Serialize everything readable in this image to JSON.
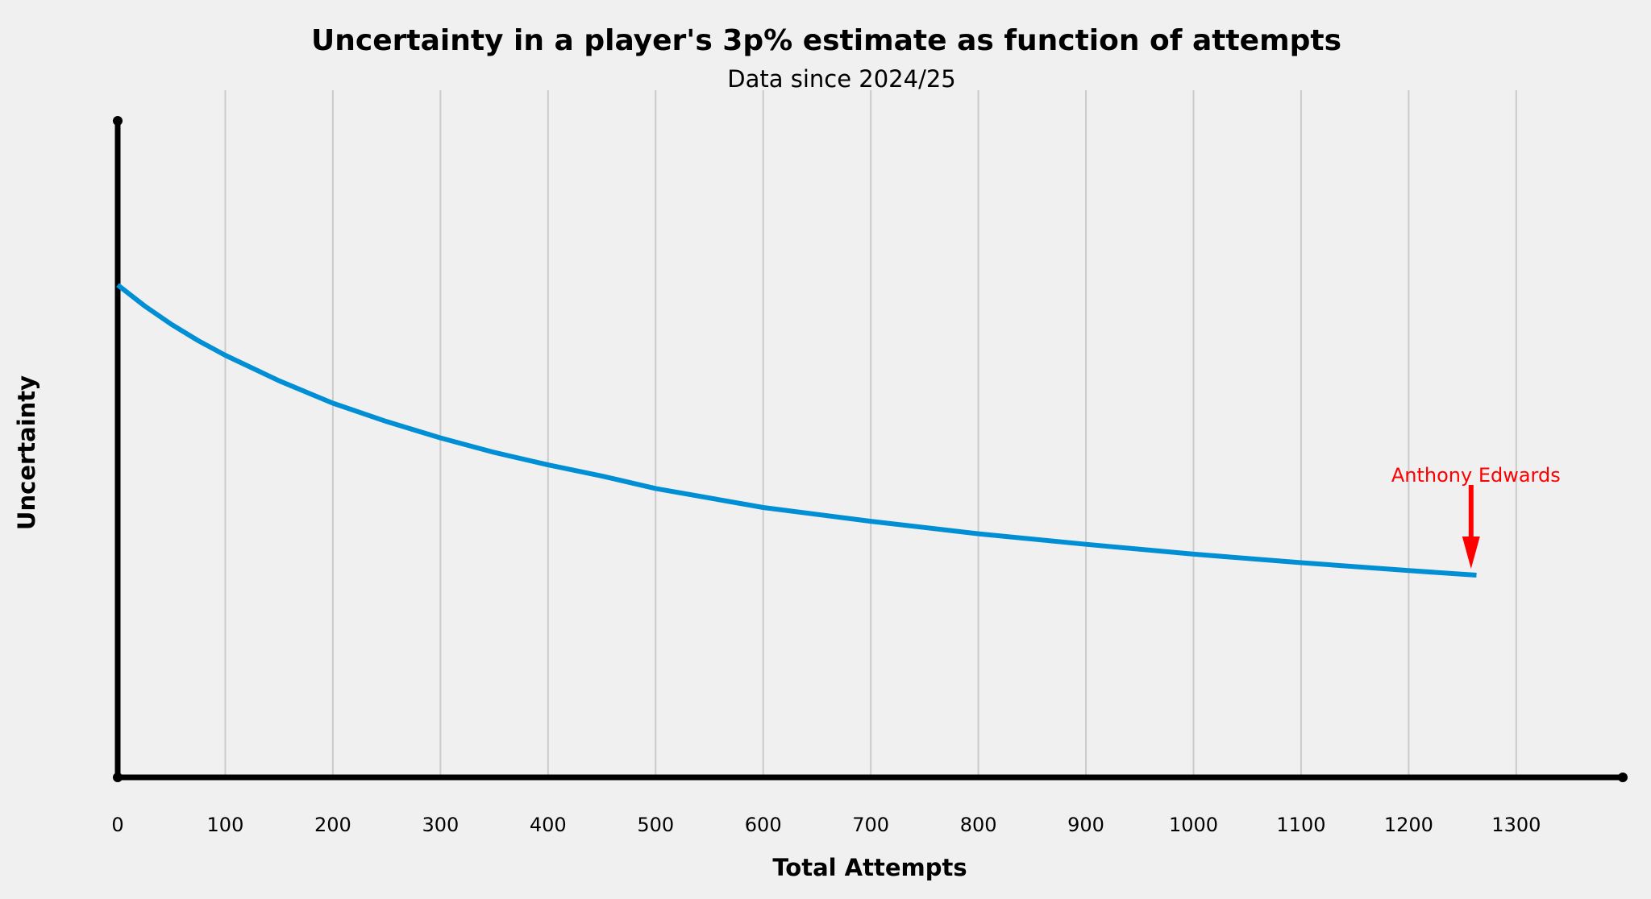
{
  "chart_data": {
    "type": "line",
    "title": "Uncertainty in a player's 3p% estimate as function of attempts",
    "subtitle": "Data since 2024/25",
    "xlabel": "Total Attempts",
    "ylabel": "Uncertainty",
    "xlim": [
      0,
      1400
    ],
    "ylim": [
      0,
      1
    ],
    "xticks": [
      "0",
      "100",
      "200",
      "300",
      "400",
      "500",
      "600",
      "700",
      "800",
      "900",
      "1000",
      "1100",
      "1200",
      "1300"
    ],
    "xtick_values": [
      0,
      100,
      200,
      300,
      400,
      500,
      600,
      700,
      800,
      900,
      1000,
      1100,
      1200,
      1300
    ],
    "yticks_visible": false,
    "grid": "vertical",
    "series": [
      {
        "name": "Uncertainty",
        "color": "#008fd5",
        "x": [
          0,
          25,
          50,
          75,
          100,
          150,
          200,
          250,
          300,
          350,
          400,
          450,
          500,
          600,
          700,
          800,
          900,
          1000,
          1100,
          1200,
          1263
        ],
        "y": [
          0.75,
          0.718,
          0.69,
          0.665,
          0.643,
          0.604,
          0.57,
          0.542,
          0.517,
          0.495,
          0.476,
          0.459,
          0.44,
          0.411,
          0.39,
          0.371,
          0.355,
          0.34,
          0.327,
          0.315,
          0.308
        ]
      }
    ],
    "annotations": [
      {
        "text": "Anthony Edwards",
        "x": 1258,
        "y": 0.308,
        "color": "#ff0000"
      }
    ]
  }
}
